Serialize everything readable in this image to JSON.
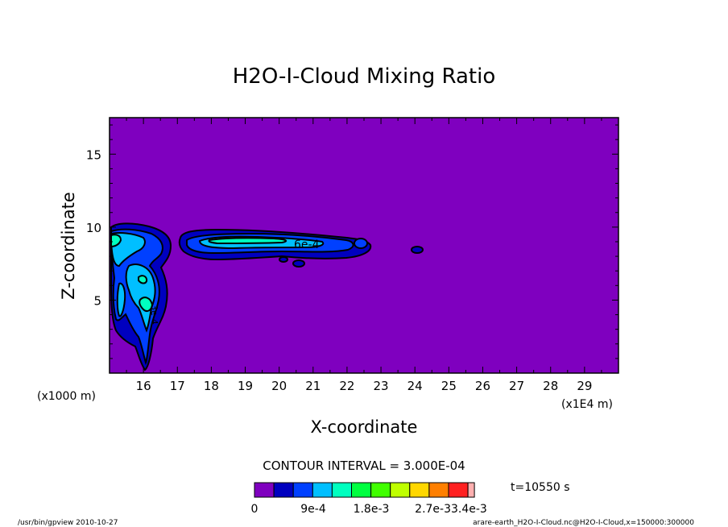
{
  "chart_data": {
    "type": "contour",
    "title": "H2O-I-Cloud Mixing Ratio",
    "xlabel": "X-coordinate",
    "ylabel": "Z-coordinate",
    "x_unit_left": "(x1000 m)",
    "x_unit_right": "(x1E4 m)",
    "x_ticks": [
      "16",
      "17",
      "18",
      "19",
      "20",
      "21",
      "22",
      "23",
      "24",
      "25",
      "26",
      "27",
      "28",
      "29"
    ],
    "y_ticks": [
      "5",
      "10",
      "15"
    ],
    "xlim": [
      15.0,
      30.0
    ],
    "ylim": [
      0.0,
      17.5
    ],
    "contour_interval_label": "CONTOUR INTERVAL = 3.000E-04",
    "time_label": "t=10550 s",
    "contour_labels": [
      {
        "text": "6e-4",
        "x": 21.0,
        "y": 8.9
      },
      {
        "text": "3e-4",
        "x": 16.2,
        "y": 4.5
      }
    ],
    "colorbar": {
      "colors": [
        "#7f00bf",
        "#0000bf",
        "#0040ff",
        "#00bfff",
        "#00ffbf",
        "#00ff40",
        "#40ff00",
        "#bfff00",
        "#ffd700",
        "#ff7f00",
        "#ff2020",
        "#ffb0b0"
      ],
      "tick_labels": [
        "0",
        "9e-4",
        "1.8e-3",
        "2.7e-3",
        "3.4e-3"
      ],
      "tick_label_text": "2.7e-33.4e-3"
    },
    "footer_left": "/usr/bin/gpview  2010-10-27",
    "footer_right": "arare-earth_H2O-I-Cloud.nc@H2O-I-Cloud,x=150000:300000"
  },
  "colors": {
    "background_fill": "#7f00bf",
    "level1": "#0000bf",
    "level2": "#0040ff",
    "level3": "#00bfff",
    "level4": "#00ffbf"
  }
}
